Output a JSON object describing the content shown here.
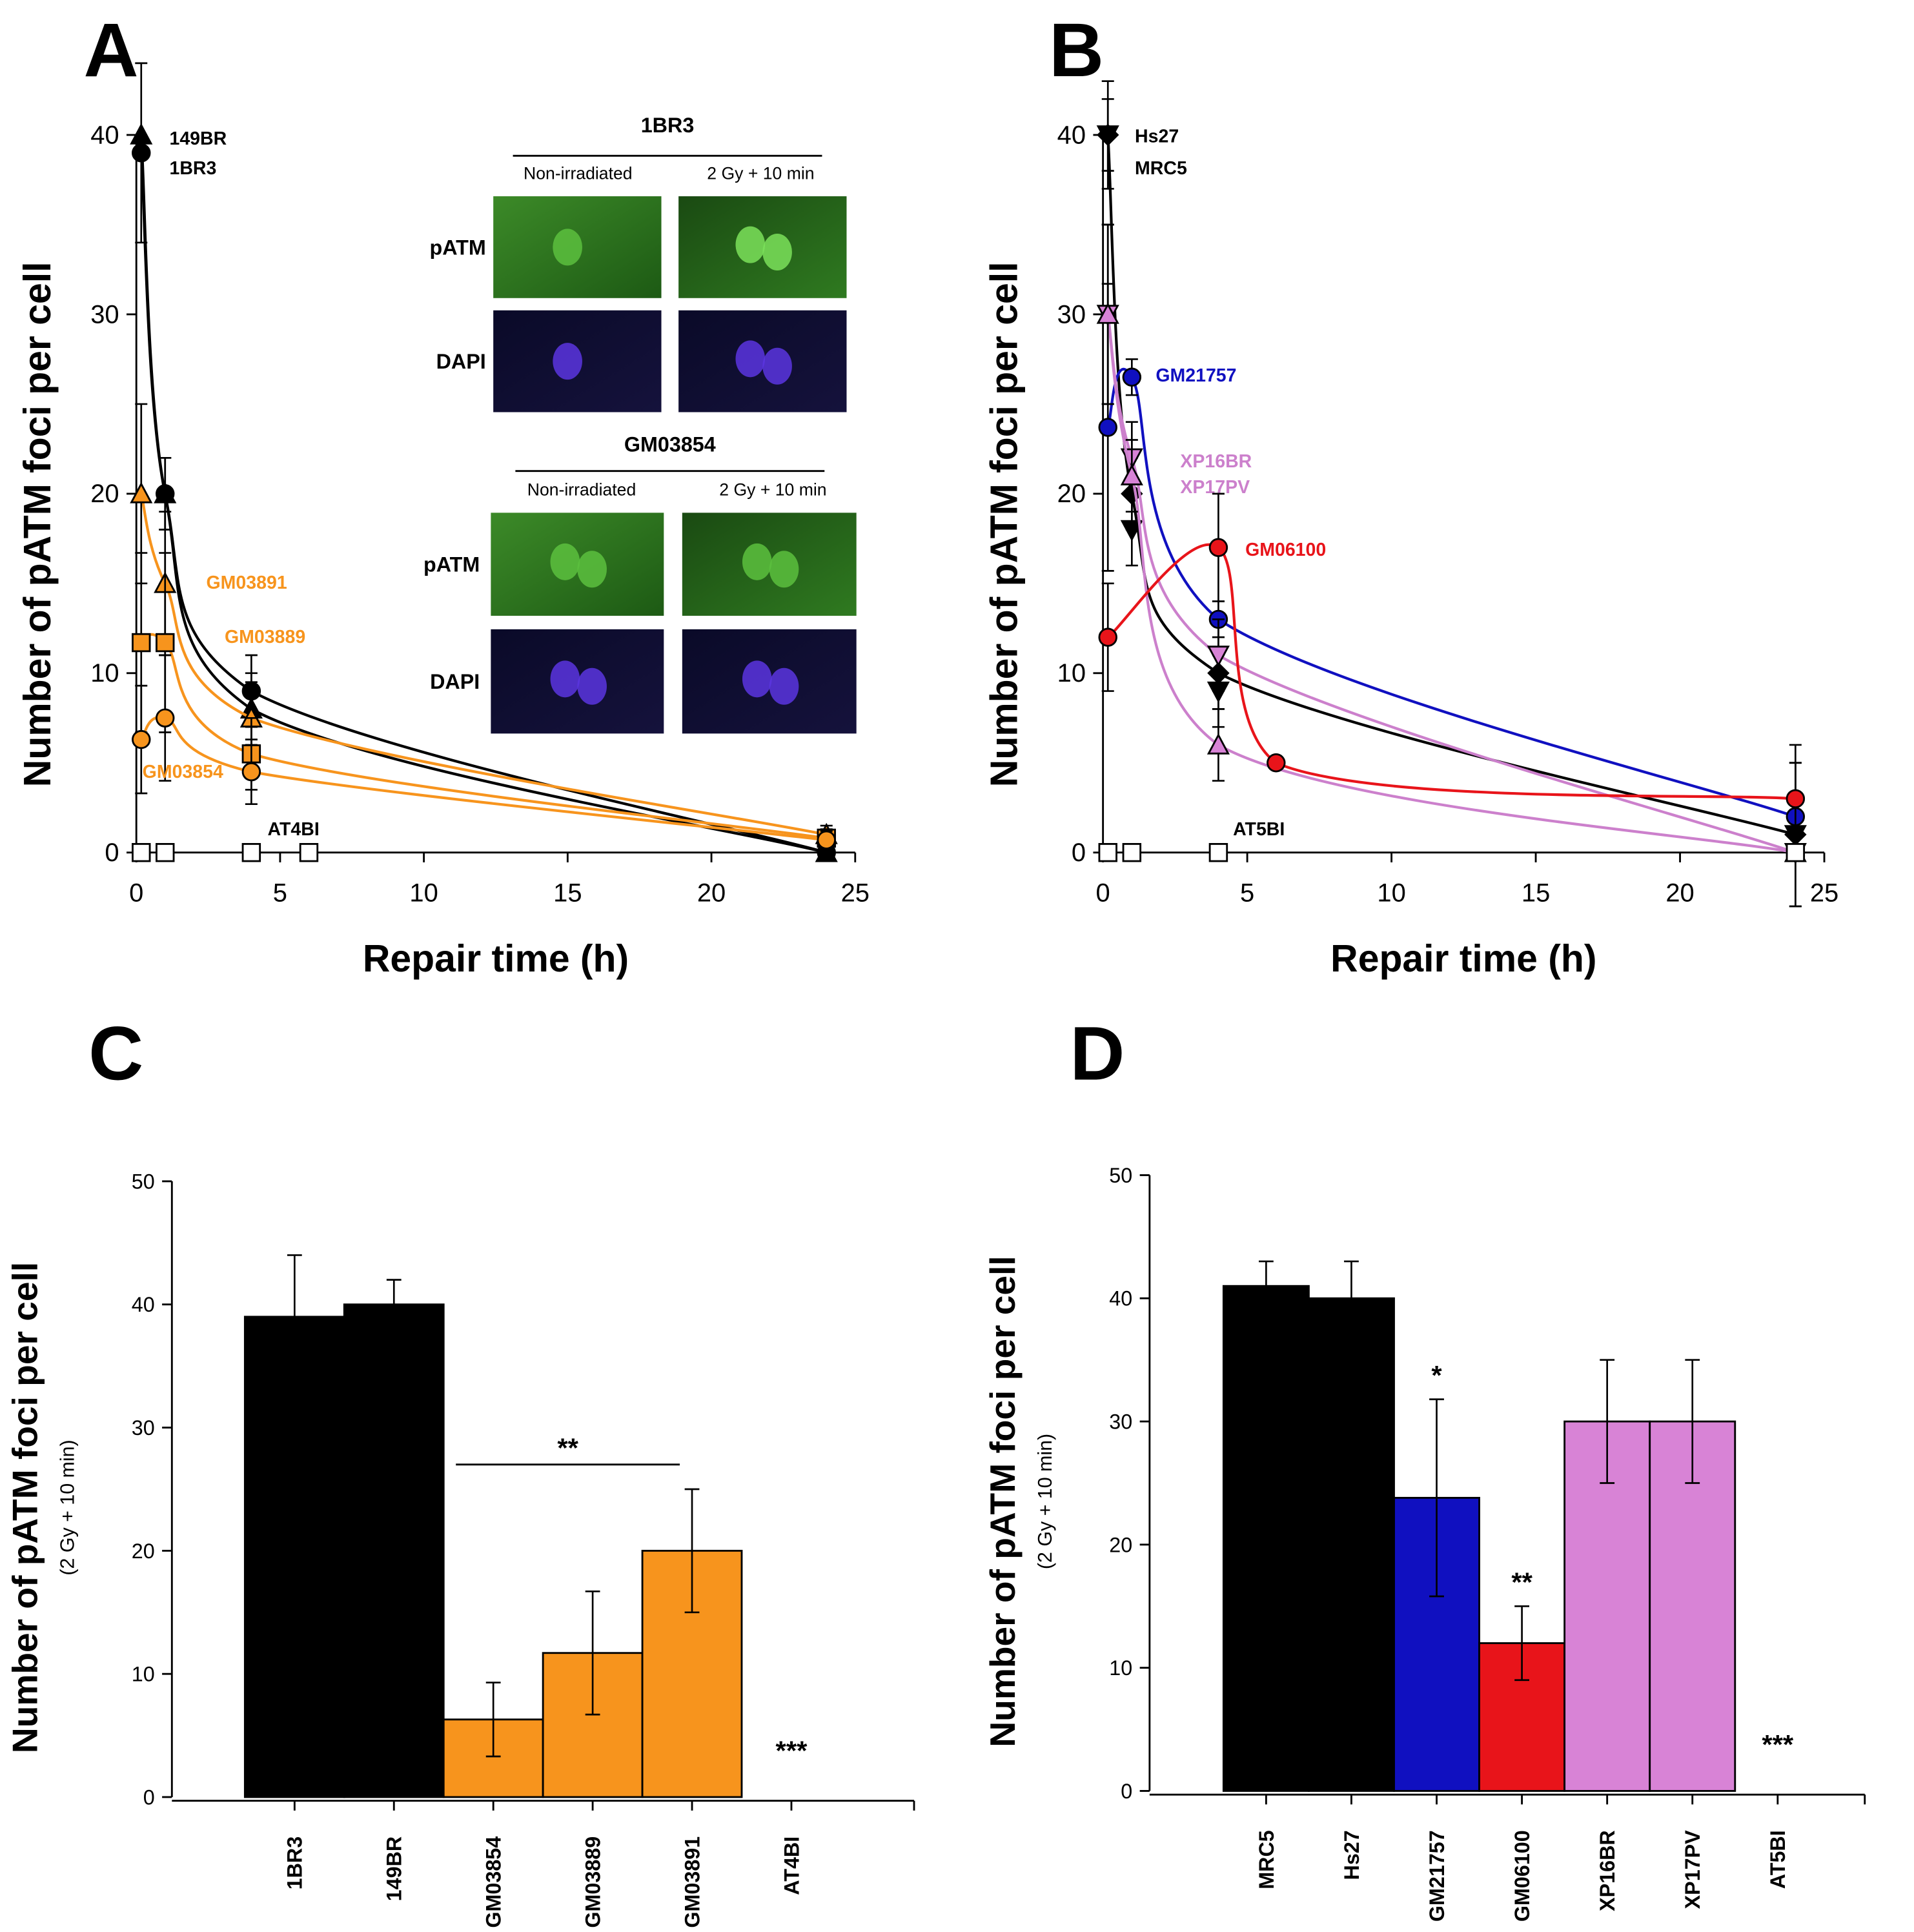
{
  "panels": {
    "A": "A",
    "B": "B",
    "C": "C",
    "D": "D"
  },
  "colors": {
    "black": "#000000",
    "orange": "#F7941D",
    "blue": "#1010C0",
    "red": "#E8141A",
    "pink": "#D883D6",
    "pink_line": "#CC80CC"
  },
  "inset": {
    "groups": [
      {
        "title": "1BR3",
        "col1": "Non-irradiated",
        "col2": "2 Gy + 10 min",
        "row1": "pATM",
        "row2": "DAPI"
      },
      {
        "title": "GM03854",
        "col1": "Non-irradiated",
        "col2": "2 Gy + 10 min",
        "row1": "pATM",
        "row2": "DAPI"
      }
    ]
  },
  "chart_data": [
    {
      "id": "A",
      "type": "line",
      "xlabel": "Repair time (h)",
      "ylabel": "Number of pATM foci per cell",
      "xlim": [
        0,
        25
      ],
      "ylim": [
        0,
        40
      ],
      "xticks": [
        "0",
        "5",
        "10",
        "15",
        "20",
        "25"
      ],
      "yticks": [
        "0",
        "10",
        "20",
        "30",
        "40"
      ],
      "series": [
        {
          "name": "149BR",
          "color": "#000000",
          "marker": "triangle",
          "fill": "#000000",
          "x": [
            0.17,
            1,
            4,
            24
          ],
          "y": [
            40,
            20,
            8,
            0
          ],
          "err": [
            0,
            2,
            2,
            0
          ]
        },
        {
          "name": "1BR3",
          "color": "#000000",
          "marker": "circle",
          "fill": "#000000",
          "x": [
            0.17,
            1,
            4,
            24
          ],
          "y": [
            39,
            20,
            9,
            0
          ],
          "err": [
            5,
            2,
            2,
            0
          ]
        },
        {
          "name": "GM03891",
          "color": "#F7941D",
          "marker": "triangle",
          "fill": "#F7941D",
          "x": [
            0.17,
            1,
            4,
            24
          ],
          "y": [
            20,
            15,
            7.5,
            1
          ],
          "err": [
            5,
            4,
            2,
            0.5
          ]
        },
        {
          "name": "GM03889",
          "color": "#F7941D",
          "marker": "square",
          "fill": "#F7941D",
          "x": [
            0.17,
            1,
            4,
            24
          ],
          "y": [
            11.7,
            11.7,
            5.5,
            0.8
          ],
          "err": [
            5,
            5,
            2,
            0.5
          ]
        },
        {
          "name": "GM03854",
          "color": "#F7941D",
          "marker": "circle",
          "fill": "#F7941D",
          "x": [
            0.17,
            1,
            4,
            24
          ],
          "y": [
            6.3,
            7.5,
            4.5,
            0.7
          ],
          "err": [
            3,
            3.5,
            1.8,
            0.5
          ]
        },
        {
          "name": "AT4BI",
          "color": "#000000",
          "marker": "square",
          "fill": "#FFFFFF",
          "nocurve": true,
          "x": [
            0.17,
            1,
            4,
            6
          ],
          "y": [
            0,
            0,
            0,
            0
          ],
          "err": [
            0,
            0,
            0,
            0
          ]
        }
      ]
    },
    {
      "id": "B",
      "type": "line",
      "xlabel": "Repair time (h)",
      "ylabel": "Number of pATM foci per cell",
      "xlim": [
        0,
        25
      ],
      "ylim": [
        0,
        40
      ],
      "xticks": [
        "0",
        "5",
        "10",
        "15",
        "20",
        "25"
      ],
      "yticks": [
        "0",
        "10",
        "20",
        "30",
        "40"
      ],
      "series": [
        {
          "name": "Hs27",
          "color": "#000000",
          "marker": "diamond",
          "fill": "#000000",
          "x": [
            0.17,
            1,
            4,
            24
          ],
          "y": [
            40,
            20,
            10,
            1
          ],
          "err": [
            3,
            2,
            2,
            4
          ]
        },
        {
          "name": "MRC5",
          "color": "#000000",
          "marker": "down-triangle",
          "fill": "#000000",
          "nocurve": true,
          "x": [
            0.17,
            1,
            4,
            24
          ],
          "y": [
            40,
            18,
            9,
            1
          ],
          "err": [
            2,
            2,
            2,
            4
          ]
        },
        {
          "name": "GM21757",
          "color": "#1010C0",
          "marker": "circle",
          "fill": "#1010C0",
          "x": [
            0.17,
            1,
            4,
            24
          ],
          "y": [
            23.7,
            26.5,
            13,
            2
          ],
          "err": [
            8,
            1,
            1,
            1
          ]
        },
        {
          "name": "XP16BR",
          "color": "#CC80CC",
          "marker": "down-triangle",
          "fill": "#D883D6",
          "x": [
            0.17,
            1,
            4,
            24
          ],
          "y": [
            30,
            22,
            11,
            0
          ],
          "err": [
            5,
            2,
            2,
            0
          ]
        },
        {
          "name": "XP17PV",
          "color": "#CC80CC",
          "marker": "triangle",
          "fill": "#D883D6",
          "x": [
            0.17,
            1,
            4,
            24
          ],
          "y": [
            30,
            21,
            6,
            0
          ],
          "err": [
            5,
            2,
            2,
            0
          ]
        },
        {
          "name": "GM06100",
          "color": "#E8141A",
          "marker": "circle",
          "fill": "#E8141A",
          "x": [
            0.17,
            4,
            6,
            24
          ],
          "y": [
            12,
            17,
            5,
            3
          ],
          "err": [
            3,
            3,
            0,
            3
          ]
        },
        {
          "name": "AT5BI",
          "color": "#000000",
          "marker": "square",
          "fill": "#FFFFFF",
          "nocurve": true,
          "x": [
            0.17,
            1,
            4,
            24
          ],
          "y": [
            0,
            0,
            0,
            0
          ],
          "err": [
            0,
            0,
            0,
            0
          ]
        }
      ]
    },
    {
      "id": "C",
      "type": "bar",
      "ylabel": "Number of pATM foci per cell",
      "ylabel_sub": "(2 Gy + 10 min)",
      "ylim": [
        0,
        50
      ],
      "yticks": [
        "0",
        "10",
        "20",
        "30",
        "40",
        "50"
      ],
      "categories": [
        "1BR3",
        "149BR",
        "GM03854",
        "GM03889",
        "GM03891",
        "AT4BI"
      ],
      "values": [
        39,
        40,
        6.3,
        11.7,
        20,
        0
      ],
      "errors": [
        5,
        2,
        3,
        5,
        5,
        0
      ],
      "bar_colors": [
        "#000000",
        "#000000",
        "#F7941D",
        "#F7941D",
        "#F7941D",
        "#000000"
      ],
      "annotations": [
        {
          "text": "**",
          "span": [
            2,
            4
          ],
          "y": 27
        },
        {
          "text": "***",
          "index": 5
        }
      ]
    },
    {
      "id": "D",
      "type": "bar",
      "ylabel": "Number of pATM foci per cell",
      "ylabel_sub": "(2 Gy + 10 min)",
      "ylim": [
        0,
        50
      ],
      "yticks": [
        "0",
        "10",
        "20",
        "30",
        "40",
        "50"
      ],
      "categories": [
        "MRC5",
        "Hs27",
        "GM21757",
        "GM06100",
        "XP16BR",
        "XP17PV",
        "AT5BI"
      ],
      "values": [
        41,
        40,
        23.8,
        12,
        30,
        30,
        0
      ],
      "errors": [
        2,
        3,
        8,
        3,
        5,
        5,
        0
      ],
      "bar_colors": [
        "#000000",
        "#000000",
        "#1010C0",
        "#E8141A",
        "#D883D6",
        "#D883D6",
        "#000000"
      ],
      "annotations": [
        {
          "text": "*",
          "index": 2
        },
        {
          "text": "**",
          "index": 3
        },
        {
          "text": "***",
          "index": 6
        }
      ]
    }
  ]
}
